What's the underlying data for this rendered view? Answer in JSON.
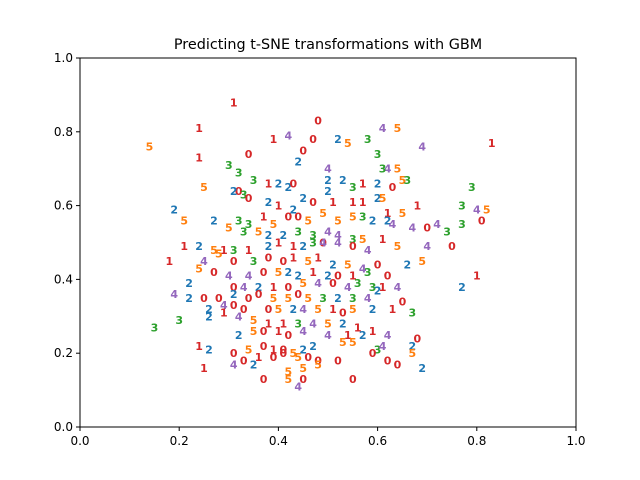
{
  "chart_data": {
    "type": "scatter",
    "title": "Predicting t-SNE transformations with GBM",
    "xlabel": "",
    "ylabel": "",
    "xlim": [
      0,
      1
    ],
    "ylim": [
      0,
      1
    ],
    "xticks": [
      "0.0",
      "0.2",
      "0.4",
      "0.6",
      "0.8",
      "1.0"
    ],
    "yticks": [
      "0.0",
      "0.2",
      "0.4",
      "0.6",
      "0.8",
      "1.0"
    ],
    "grid": false,
    "colors": {
      "0": "#d62728",
      "1": "#d62728",
      "2": "#1f77b4",
      "3": "#2ca02c",
      "4": "#9467bd",
      "5": "#ff7f0e"
    },
    "points": [
      [
        0.31,
        0.88,
        "1"
      ],
      [
        0.48,
        0.83,
        "0"
      ],
      [
        0.24,
        0.81,
        "1"
      ],
      [
        0.14,
        0.76,
        "5"
      ],
      [
        0.34,
        0.74,
        "0"
      ],
      [
        0.24,
        0.73,
        "1"
      ],
      [
        0.39,
        0.78,
        "1"
      ],
      [
        0.42,
        0.79,
        "4"
      ],
      [
        0.45,
        0.75,
        "0"
      ],
      [
        0.44,
        0.72,
        "2"
      ],
      [
        0.47,
        0.78,
        "0"
      ],
      [
        0.52,
        0.78,
        "2"
      ],
      [
        0.54,
        0.77,
        "5"
      ],
      [
        0.58,
        0.78,
        "3"
      ],
      [
        0.61,
        0.81,
        "4"
      ],
      [
        0.64,
        0.81,
        "5"
      ],
      [
        0.83,
        0.77,
        "1"
      ],
      [
        0.69,
        0.76,
        "4"
      ],
      [
        0.6,
        0.74,
        "3"
      ],
      [
        0.62,
        0.7,
        "4"
      ],
      [
        0.64,
        0.7,
        "5"
      ],
      [
        0.3,
        0.71,
        "3"
      ],
      [
        0.32,
        0.69,
        "3"
      ],
      [
        0.35,
        0.67,
        "3"
      ],
      [
        0.32,
        0.64,
        "0"
      ],
      [
        0.25,
        0.65,
        "5"
      ],
      [
        0.31,
        0.64,
        "2"
      ],
      [
        0.33,
        0.63,
        "3"
      ],
      [
        0.38,
        0.66,
        "1"
      ],
      [
        0.4,
        0.66,
        "2"
      ],
      [
        0.42,
        0.65,
        "2"
      ],
      [
        0.43,
        0.66,
        "0"
      ],
      [
        0.5,
        0.7,
        "4"
      ],
      [
        0.5,
        0.67,
        "2"
      ],
      [
        0.53,
        0.67,
        "2"
      ],
      [
        0.55,
        0.65,
        "3"
      ],
      [
        0.57,
        0.66,
        "1"
      ],
      [
        0.6,
        0.66,
        "2"
      ],
      [
        0.61,
        0.7,
        "3"
      ],
      [
        0.63,
        0.65,
        "0"
      ],
      [
        0.65,
        0.67,
        "5"
      ],
      [
        0.66,
        0.67,
        "3"
      ],
      [
        0.79,
        0.65,
        "3"
      ],
      [
        0.19,
        0.59,
        "2"
      ],
      [
        0.34,
        0.62,
        "0"
      ],
      [
        0.38,
        0.61,
        "2"
      ],
      [
        0.4,
        0.6,
        "1"
      ],
      [
        0.43,
        0.59,
        "2"
      ],
      [
        0.45,
        0.62,
        "2"
      ],
      [
        0.47,
        0.61,
        "0"
      ],
      [
        0.5,
        0.64,
        "2"
      ],
      [
        0.51,
        0.61,
        "1"
      ],
      [
        0.55,
        0.61,
        "1"
      ],
      [
        0.57,
        0.61,
        "1"
      ],
      [
        0.6,
        0.62,
        "2"
      ],
      [
        0.61,
        0.62,
        "5"
      ],
      [
        0.62,
        0.58,
        "1"
      ],
      [
        0.65,
        0.58,
        "5"
      ],
      [
        0.68,
        0.6,
        "1"
      ],
      [
        0.77,
        0.6,
        "3"
      ],
      [
        0.8,
        0.59,
        "4"
      ],
      [
        0.82,
        0.59,
        "5"
      ],
      [
        0.21,
        0.56,
        "5"
      ],
      [
        0.27,
        0.56,
        "2"
      ],
      [
        0.32,
        0.56,
        "3"
      ],
      [
        0.34,
        0.55,
        "3"
      ],
      [
        0.37,
        0.57,
        "1"
      ],
      [
        0.39,
        0.55,
        "5"
      ],
      [
        0.42,
        0.57,
        "0"
      ],
      [
        0.44,
        0.57,
        "0"
      ],
      [
        0.46,
        0.56,
        "5"
      ],
      [
        0.49,
        0.58,
        "5"
      ],
      [
        0.52,
        0.56,
        "5"
      ],
      [
        0.55,
        0.57,
        "5"
      ],
      [
        0.57,
        0.57,
        "3"
      ],
      [
        0.59,
        0.56,
        "2"
      ],
      [
        0.62,
        0.56,
        "2"
      ],
      [
        0.63,
        0.55,
        "4"
      ],
      [
        0.67,
        0.54,
        "4"
      ],
      [
        0.7,
        0.54,
        "0"
      ],
      [
        0.72,
        0.55,
        "4"
      ],
      [
        0.74,
        0.53,
        "3"
      ],
      [
        0.77,
        0.55,
        "3"
      ],
      [
        0.81,
        0.56,
        "0"
      ],
      [
        0.3,
        0.54,
        "5"
      ],
      [
        0.33,
        0.53,
        "3"
      ],
      [
        0.36,
        0.53,
        "5"
      ],
      [
        0.38,
        0.52,
        "2"
      ],
      [
        0.41,
        0.52,
        "2"
      ],
      [
        0.44,
        0.53,
        "3"
      ],
      [
        0.47,
        0.52,
        "3"
      ],
      [
        0.49,
        0.5,
        "0"
      ],
      [
        0.5,
        0.53,
        "4"
      ],
      [
        0.52,
        0.52,
        "4"
      ],
      [
        0.55,
        0.51,
        "3"
      ],
      [
        0.57,
        0.51,
        "5"
      ],
      [
        0.61,
        0.51,
        "1"
      ],
      [
        0.21,
        0.49,
        "1"
      ],
      [
        0.24,
        0.49,
        "2"
      ],
      [
        0.27,
        0.48,
        "5"
      ],
      [
        0.29,
        0.48,
        "1"
      ],
      [
        0.31,
        0.48,
        "3"
      ],
      [
        0.34,
        0.48,
        "1"
      ],
      [
        0.38,
        0.49,
        "2"
      ],
      [
        0.4,
        0.5,
        "1"
      ],
      [
        0.43,
        0.49,
        "1"
      ],
      [
        0.45,
        0.49,
        "2"
      ],
      [
        0.47,
        0.5,
        "3"
      ],
      [
        0.49,
        0.5,
        "4"
      ],
      [
        0.52,
        0.5,
        "4"
      ],
      [
        0.55,
        0.49,
        "0"
      ],
      [
        0.58,
        0.48,
        "4"
      ],
      [
        0.64,
        0.49,
        "5"
      ],
      [
        0.7,
        0.49,
        "4"
      ],
      [
        0.75,
        0.49,
        "0"
      ],
      [
        0.18,
        0.45,
        "1"
      ],
      [
        0.25,
        0.45,
        "4"
      ],
      [
        0.28,
        0.47,
        "5"
      ],
      [
        0.31,
        0.45,
        "0"
      ],
      [
        0.35,
        0.45,
        "3"
      ],
      [
        0.38,
        0.46,
        "0"
      ],
      [
        0.41,
        0.45,
        "0"
      ],
      [
        0.43,
        0.46,
        "1"
      ],
      [
        0.46,
        0.45,
        "5"
      ],
      [
        0.48,
        0.46,
        "1"
      ],
      [
        0.51,
        0.44,
        "2"
      ],
      [
        0.54,
        0.44,
        "5"
      ],
      [
        0.57,
        0.43,
        "4"
      ],
      [
        0.6,
        0.44,
        "0"
      ],
      [
        0.66,
        0.44,
        "2"
      ],
      [
        0.69,
        0.45,
        "5"
      ],
      [
        0.24,
        0.43,
        "5"
      ],
      [
        0.27,
        0.42,
        "0"
      ],
      [
        0.3,
        0.41,
        "4"
      ],
      [
        0.34,
        0.41,
        "4"
      ],
      [
        0.37,
        0.42,
        "0"
      ],
      [
        0.4,
        0.42,
        "5"
      ],
      [
        0.42,
        0.42,
        "2"
      ],
      [
        0.44,
        0.41,
        "2"
      ],
      [
        0.47,
        0.42,
        "1"
      ],
      [
        0.5,
        0.41,
        "2"
      ],
      [
        0.52,
        0.41,
        "0"
      ],
      [
        0.55,
        0.41,
        "1"
      ],
      [
        0.58,
        0.42,
        "3"
      ],
      [
        0.62,
        0.41,
        "0"
      ],
      [
        0.8,
        0.41,
        "1"
      ],
      [
        0.22,
        0.39,
        "2"
      ],
      [
        0.31,
        0.38,
        "0"
      ],
      [
        0.33,
        0.38,
        "4"
      ],
      [
        0.36,
        0.38,
        "2"
      ],
      [
        0.39,
        0.38,
        "1"
      ],
      [
        0.42,
        0.38,
        "0"
      ],
      [
        0.45,
        0.39,
        "5"
      ],
      [
        0.48,
        0.39,
        "4"
      ],
      [
        0.51,
        0.39,
        "0"
      ],
      [
        0.54,
        0.38,
        "4"
      ],
      [
        0.56,
        0.39,
        "3"
      ],
      [
        0.59,
        0.38,
        "3"
      ],
      [
        0.61,
        0.38,
        "1"
      ],
      [
        0.64,
        0.38,
        "4"
      ],
      [
        0.77,
        0.38,
        "2"
      ],
      [
        0.19,
        0.36,
        "4"
      ],
      [
        0.22,
        0.35,
        "2"
      ],
      [
        0.25,
        0.35,
        "0"
      ],
      [
        0.28,
        0.35,
        "0"
      ],
      [
        0.31,
        0.36,
        "2"
      ],
      [
        0.34,
        0.35,
        "0"
      ],
      [
        0.36,
        0.36,
        "0"
      ],
      [
        0.39,
        0.35,
        "5"
      ],
      [
        0.42,
        0.35,
        "5"
      ],
      [
        0.44,
        0.36,
        "0"
      ],
      [
        0.46,
        0.35,
        "5"
      ],
      [
        0.49,
        0.35,
        "3"
      ],
      [
        0.52,
        0.35,
        "2"
      ],
      [
        0.55,
        0.35,
        "3"
      ],
      [
        0.58,
        0.35,
        "4"
      ],
      [
        0.6,
        0.37,
        "2"
      ],
      [
        0.65,
        0.34,
        "0"
      ],
      [
        0.26,
        0.32,
        "2"
      ],
      [
        0.29,
        0.33,
        "4"
      ],
      [
        0.31,
        0.33,
        "0"
      ],
      [
        0.33,
        0.32,
        "0"
      ],
      [
        0.38,
        0.32,
        "0"
      ],
      [
        0.4,
        0.32,
        "5"
      ],
      [
        0.43,
        0.32,
        "2"
      ],
      [
        0.45,
        0.32,
        "4"
      ],
      [
        0.48,
        0.32,
        "5"
      ],
      [
        0.51,
        0.32,
        "1"
      ],
      [
        0.53,
        0.31,
        "0"
      ],
      [
        0.55,
        0.32,
        "5"
      ],
      [
        0.59,
        0.32,
        "2"
      ],
      [
        0.63,
        0.32,
        "1"
      ],
      [
        0.67,
        0.31,
        "3"
      ],
      [
        0.15,
        0.27,
        "3"
      ],
      [
        0.2,
        0.29,
        "3"
      ],
      [
        0.26,
        0.3,
        "2"
      ],
      [
        0.29,
        0.31,
        "1"
      ],
      [
        0.32,
        0.3,
        "4"
      ],
      [
        0.35,
        0.29,
        "5"
      ],
      [
        0.38,
        0.28,
        "1"
      ],
      [
        0.41,
        0.28,
        "1"
      ],
      [
        0.44,
        0.28,
        "3"
      ],
      [
        0.47,
        0.28,
        "4"
      ],
      [
        0.5,
        0.28,
        "5"
      ],
      [
        0.53,
        0.28,
        "2"
      ],
      [
        0.56,
        0.27,
        "1"
      ],
      [
        0.59,
        0.26,
        "1"
      ],
      [
        0.32,
        0.25,
        "2"
      ],
      [
        0.35,
        0.26,
        "5"
      ],
      [
        0.37,
        0.26,
        "0"
      ],
      [
        0.4,
        0.26,
        "1"
      ],
      [
        0.42,
        0.25,
        "0"
      ],
      [
        0.45,
        0.26,
        "4"
      ],
      [
        0.5,
        0.25,
        "4"
      ],
      [
        0.54,
        0.25,
        "1"
      ],
      [
        0.57,
        0.25,
        "2"
      ],
      [
        0.62,
        0.25,
        "4"
      ],
      [
        0.68,
        0.24,
        "0"
      ],
      [
        0.24,
        0.22,
        "1"
      ],
      [
        0.26,
        0.21,
        "2"
      ],
      [
        0.31,
        0.2,
        "0"
      ],
      [
        0.34,
        0.21,
        "5"
      ],
      [
        0.37,
        0.22,
        "0"
      ],
      [
        0.39,
        0.21,
        "1"
      ],
      [
        0.41,
        0.21,
        "0"
      ],
      [
        0.43,
        0.2,
        "5"
      ],
      [
        0.45,
        0.21,
        "2"
      ],
      [
        0.47,
        0.22,
        "2"
      ],
      [
        0.53,
        0.23,
        "5"
      ],
      [
        0.55,
        0.23,
        "5"
      ],
      [
        0.6,
        0.21,
        "3"
      ],
      [
        0.61,
        0.22,
        "4"
      ],
      [
        0.67,
        0.22,
        "2"
      ],
      [
        0.33,
        0.18,
        "0"
      ],
      [
        0.36,
        0.19,
        "1"
      ],
      [
        0.39,
        0.19,
        "0"
      ],
      [
        0.41,
        0.2,
        "0"
      ],
      [
        0.44,
        0.19,
        "5"
      ],
      [
        0.46,
        0.19,
        "0"
      ],
      [
        0.48,
        0.18,
        "0"
      ],
      [
        0.52,
        0.18,
        "0"
      ],
      [
        0.59,
        0.2,
        "0"
      ],
      [
        0.62,
        0.18,
        "0"
      ],
      [
        0.67,
        0.2,
        "5"
      ],
      [
        0.25,
        0.16,
        "1"
      ],
      [
        0.31,
        0.17,
        "4"
      ],
      [
        0.35,
        0.17,
        "2"
      ],
      [
        0.42,
        0.15,
        "5"
      ],
      [
        0.45,
        0.16,
        "5"
      ],
      [
        0.48,
        0.17,
        "5"
      ],
      [
        0.55,
        0.13,
        "0"
      ],
      [
        0.64,
        0.17,
        "0"
      ],
      [
        0.69,
        0.16,
        "2"
      ],
      [
        0.37,
        0.13,
        "0"
      ],
      [
        0.42,
        0.13,
        "5"
      ],
      [
        0.45,
        0.13,
        "0"
      ],
      [
        0.44,
        0.11,
        "4"
      ]
    ]
  }
}
